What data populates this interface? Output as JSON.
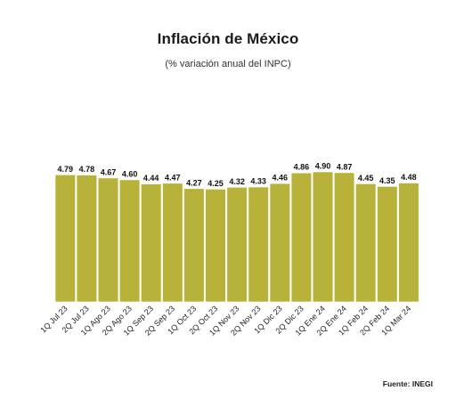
{
  "title": "Inflación de México",
  "subtitle": "(% variación anual del INPC)",
  "source": "Fuente: INEGI",
  "colors": {
    "bar": "#b9b23a"
  },
  "chart_data": {
    "type": "bar",
    "title": "Inflación de México",
    "subtitle": "(% variación anual del INPC)",
    "xlabel": "",
    "ylabel": "",
    "ylim": [
      0,
      4.9
    ],
    "grid": false,
    "categories": [
      "1Q Jul 23",
      "2Q Jul 23",
      "1Q Ago 23",
      "2Q Ago 23",
      "1Q Sep 23",
      "2Q Sep 23",
      "1Q Oct 23",
      "2Q Oct 23",
      "1Q Nov 23",
      "2Q Nov 23",
      "1Q Dic 23",
      "2Q Dic 23",
      "1Q Ene 24",
      "2Q Ene 24",
      "1Q Feb 24",
      "2Q Feb 24",
      "1Q Mar 24"
    ],
    "values": [
      4.79,
      4.78,
      4.67,
      4.6,
      4.44,
      4.47,
      4.27,
      4.25,
      4.32,
      4.33,
      4.46,
      4.86,
      4.9,
      4.87,
      4.45,
      4.35,
      4.48
    ],
    "labels": [
      "4.79",
      "4.78",
      "4.67",
      "4.60",
      "4.44",
      "4.47",
      "4.27",
      "4.25",
      "4.32",
      "4.33",
      "4.46",
      "4.86",
      "4.90",
      "4.87",
      "4.45",
      "4.35",
      "4.48"
    ]
  }
}
